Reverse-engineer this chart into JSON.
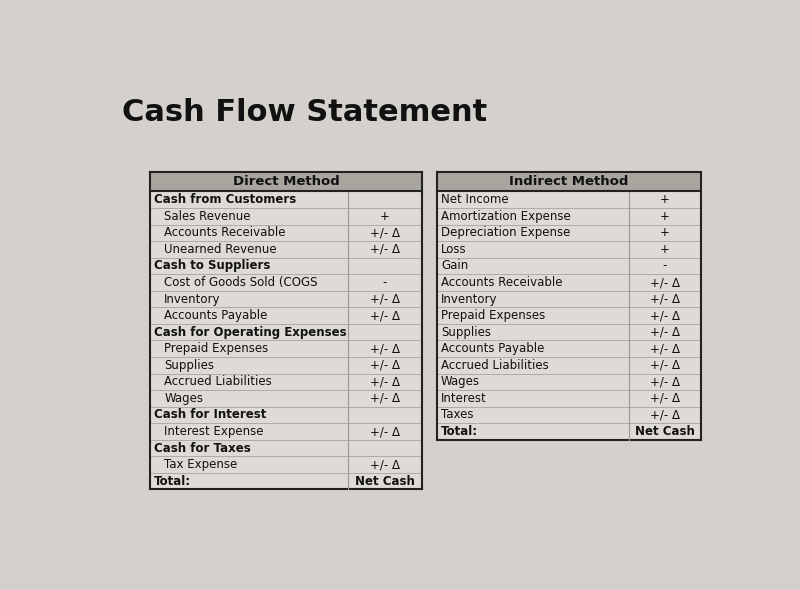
{
  "title": "Cash Flow Statement",
  "title_fontsize": 22,
  "title_fontweight": "bold",
  "background_color": "#d4d0cc",
  "table_bg": "#dedad6",
  "header_bg": "#a8a49e",
  "row_line_color": "#999990",
  "border_color": "#222222",
  "text_color": "#111111",
  "direct": {
    "header": "Direct Method",
    "rows": [
      {
        "label": "Cash from Customers",
        "value": "",
        "bold": true,
        "indent": false
      },
      {
        "label": "Sales Revenue",
        "value": "+",
        "bold": false,
        "indent": true
      },
      {
        "label": "Accounts Receivable",
        "value": "+/- Δ",
        "bold": false,
        "indent": true
      },
      {
        "label": "Unearned Revenue",
        "value": "+/- Δ",
        "bold": false,
        "indent": true
      },
      {
        "label": "Cash to Suppliers",
        "value": "",
        "bold": true,
        "indent": false
      },
      {
        "label": "Cost of Goods Sold (COGS",
        "value": "-",
        "bold": false,
        "indent": true
      },
      {
        "label": "Inventory",
        "value": "+/- Δ",
        "bold": false,
        "indent": true
      },
      {
        "label": "Accounts Payable",
        "value": "+/- Δ",
        "bold": false,
        "indent": true
      },
      {
        "label": "Cash for Operating Expenses",
        "value": "",
        "bold": true,
        "indent": false
      },
      {
        "label": "Prepaid Expenses",
        "value": "+/- Δ",
        "bold": false,
        "indent": true
      },
      {
        "label": "Supplies",
        "value": "+/- Δ",
        "bold": false,
        "indent": true
      },
      {
        "label": "Accrued Liabilities",
        "value": "+/- Δ",
        "bold": false,
        "indent": true
      },
      {
        "label": "Wages",
        "value": "+/- Δ",
        "bold": false,
        "indent": true
      },
      {
        "label": "Cash for Interest",
        "value": "",
        "bold": true,
        "indent": false
      },
      {
        "label": "Interest Expense",
        "value": "+/- Δ",
        "bold": false,
        "indent": true
      },
      {
        "label": "Cash for Taxes",
        "value": "",
        "bold": true,
        "indent": false
      },
      {
        "label": "Tax Expense",
        "value": "+/- Δ",
        "bold": false,
        "indent": true
      },
      {
        "label": "Total:",
        "value": "Net Cash",
        "bold": true,
        "indent": false
      }
    ]
  },
  "indirect": {
    "header": "Indirect Method",
    "rows": [
      {
        "label": "Net Income",
        "value": "+",
        "bold": false,
        "indent": false
      },
      {
        "label": "Amortization Expense",
        "value": "+",
        "bold": false,
        "indent": false
      },
      {
        "label": "Depreciation Expense",
        "value": "+",
        "bold": false,
        "indent": false
      },
      {
        "label": "Loss",
        "value": "+",
        "bold": false,
        "indent": false
      },
      {
        "label": "Gain",
        "value": "-",
        "bold": false,
        "indent": false
      },
      {
        "label": "Accounts Receivable",
        "value": "+/- Δ",
        "bold": false,
        "indent": false
      },
      {
        "label": "Inventory",
        "value": "+/- Δ",
        "bold": false,
        "indent": false
      },
      {
        "label": "Prepaid Expenses",
        "value": "+/- Δ",
        "bold": false,
        "indent": false
      },
      {
        "label": "Supplies",
        "value": "+/- Δ",
        "bold": false,
        "indent": false
      },
      {
        "label": "Accounts Payable",
        "value": "+/- Δ",
        "bold": false,
        "indent": false
      },
      {
        "label": "Accrued Liabilities",
        "value": "+/- Δ",
        "bold": false,
        "indent": false
      },
      {
        "label": "Wages",
        "value": "+/- Δ",
        "bold": false,
        "indent": false
      },
      {
        "label": "Interest",
        "value": "+/- Δ",
        "bold": false,
        "indent": false
      },
      {
        "label": "Taxes",
        "value": "+/- Δ",
        "bold": false,
        "indent": false
      },
      {
        "label": "Total:",
        "value": "Net Cash",
        "bold": true,
        "indent": false
      }
    ]
  }
}
